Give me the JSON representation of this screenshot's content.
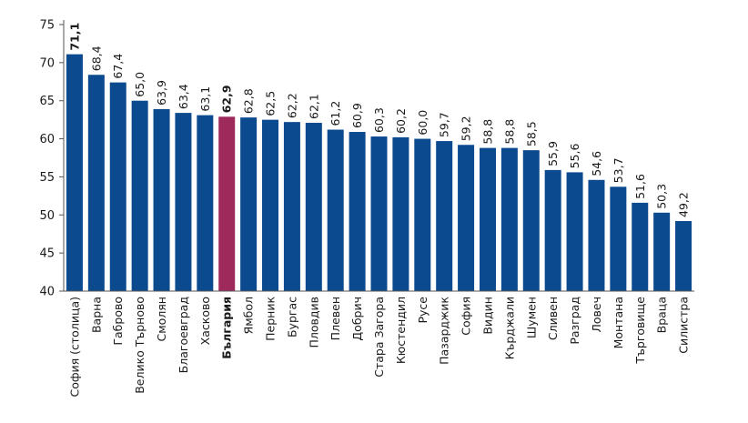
{
  "chart_data": {
    "type": "bar",
    "title": "",
    "xlabel": "",
    "ylabel": "",
    "ylim": [
      40,
      75
    ],
    "yticks": [
      40,
      45,
      50,
      55,
      60,
      65,
      70,
      75
    ],
    "grid": false,
    "categories": [
      "София (столица)",
      "Варна",
      "Габрово",
      "Велико Търново",
      "Смолян",
      "Благоевград",
      "Хасково",
      "България",
      "Ямбол",
      "Перник",
      "Бургас",
      "Пловдив",
      "Плевен",
      "Добрич",
      "Стара Загора",
      "Кюстендил",
      "Русе",
      "Пазарджик",
      "София",
      "Видин",
      "Кърджали",
      "Шумен",
      "Сливен",
      "Разград",
      "Ловеч",
      "Монтана",
      "Търговище",
      "Враца",
      "Силистра"
    ],
    "values": [
      71.1,
      68.4,
      67.4,
      65.0,
      63.9,
      63.4,
      63.1,
      62.9,
      62.8,
      62.5,
      62.2,
      62.1,
      61.2,
      60.9,
      60.3,
      60.2,
      60.0,
      59.7,
      59.2,
      58.8,
      58.8,
      58.5,
      55.9,
      55.6,
      54.6,
      53.7,
      51.6,
      50.3,
      49.2
    ],
    "value_labels": [
      "71,1",
      "68,4",
      "67,4",
      "65,0",
      "63,9",
      "63,4",
      "63,1",
      "62,9",
      "62,8",
      "62,5",
      "62,2",
      "62,1",
      "61,2",
      "60,9",
      "60,3",
      "60,2",
      "60,0",
      "59,7",
      "59,2",
      "58,8",
      "58,8",
      "58,5",
      "55,9",
      "55,6",
      "54,6",
      "53,7",
      "51,6",
      "50,3",
      "49,2"
    ],
    "colors": {
      "bar": "#0b4a8f",
      "highlight_bar": "#9e2a5c",
      "first_label": "#0b4a8f",
      "highlight_label": "#9e2a5c",
      "axis": "#555555"
    },
    "first_index": 0,
    "highlight_index": 7
  }
}
